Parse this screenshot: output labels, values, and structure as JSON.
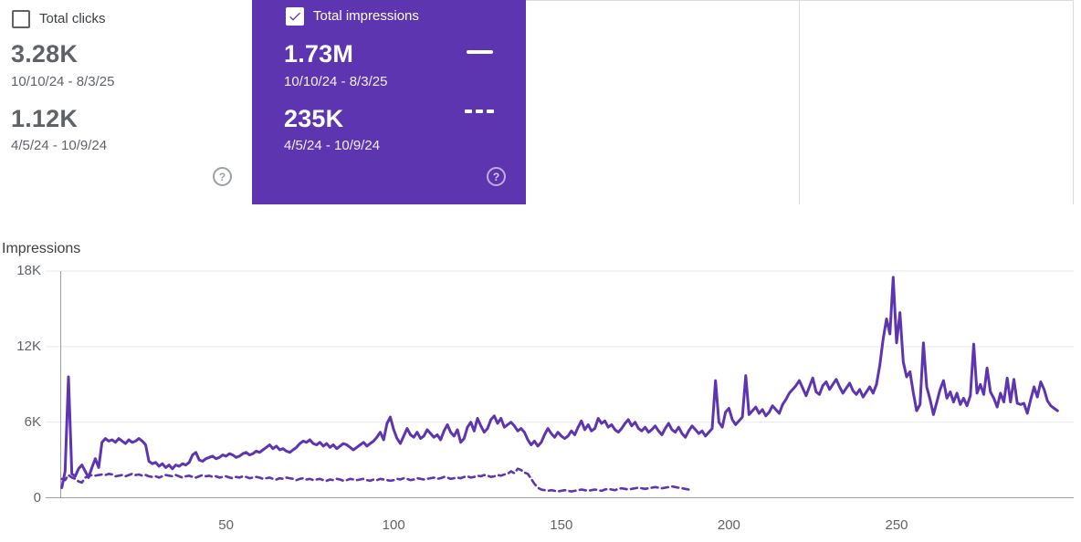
{
  "cards": {
    "clicks": {
      "label": "Total clicks",
      "checked": false,
      "current": {
        "value": "3.28K",
        "range": "10/10/24 - 8/3/25"
      },
      "previous": {
        "value": "1.12K",
        "range": "4/5/24 - 10/9/24"
      },
      "help_icon": "?"
    },
    "impressions": {
      "label": "Total impressions",
      "checked": true,
      "current": {
        "value": "1.73M",
        "range": "10/10/24 - 8/3/25"
      },
      "previous": {
        "value": "235K",
        "range": "4/5/24 - 10/9/24"
      },
      "help_icon": "?"
    }
  },
  "colors": {
    "accent": "#5e35b1",
    "line": "#5e35b1",
    "grid": "#e8eaed",
    "axis": "#9aa0a6",
    "tick_text": "#5f6368",
    "card_border": "#dadce0"
  },
  "chart_data": {
    "type": "line",
    "title": "Impressions",
    "ylabel": "Impressions",
    "xlabel": "",
    "ylim": [
      0,
      18000
    ],
    "grid": true,
    "legend_position": "in-card",
    "y_ticks": [
      {
        "value": 18000,
        "label": "18K"
      },
      {
        "value": 12000,
        "label": "12K"
      },
      {
        "value": 6000,
        "label": "6K"
      },
      {
        "value": 0,
        "label": "0"
      }
    ],
    "x_ticks": [
      {
        "value": 50,
        "label": "50"
      },
      {
        "value": 100,
        "label": "100"
      },
      {
        "value": 150,
        "label": "150"
      },
      {
        "value": 200,
        "label": "200"
      },
      {
        "value": 250,
        "label": "250"
      }
    ],
    "series": [
      {
        "name": "10/10/24 - 8/3/25",
        "style": "solid",
        "values": [
          800,
          2100,
          9600,
          1900,
          1700,
          2300,
          2600,
          2100,
          1600,
          2400,
          3100,
          2400,
          4400,
          4700,
          4500,
          4600,
          4400,
          4700,
          4500,
          4300,
          4600,
          4400,
          4500,
          4700,
          4500,
          4200,
          2900,
          2700,
          2800,
          2500,
          2700,
          2400,
          2600,
          2300,
          2600,
          2500,
          2700,
          2600,
          2800,
          3400,
          3600,
          3000,
          2900,
          3100,
          3200,
          3300,
          3100,
          3200,
          3400,
          3300,
          3500,
          3400,
          3200,
          3300,
          3500,
          3600,
          3400,
          3500,
          3700,
          3600,
          3800,
          4000,
          4200,
          3900,
          4100,
          3800,
          3900,
          3700,
          3600,
          3800,
          4000,
          4300,
          4500,
          4400,
          4600,
          4300,
          4200,
          4400,
          4100,
          4300,
          4000,
          4200,
          3900,
          4100,
          4300,
          4200,
          4000,
          3800,
          4000,
          4200,
          4400,
          4100,
          4300,
          4500,
          4800,
          5200,
          4600,
          5900,
          6400,
          5400,
          4700,
          4300,
          4900,
          5500,
          5000,
          4800,
          5200,
          4700,
          4900,
          5400,
          5100,
          4800,
          5000,
          4600,
          5300,
          5800,
          5200,
          4900,
          5400,
          4400,
          4700,
          5600,
          6000,
          5300,
          6300,
          5700,
          5200,
          5500,
          6200,
          6500,
          5900,
          6300,
          5600,
          5800,
          6000,
          5700,
          5300,
          5500,
          5200,
          4600,
          4200,
          4500,
          4100,
          4400,
          5000,
          5500,
          5100,
          4800,
          5200,
          4900,
          4700,
          4900,
          5300,
          5000,
          5600,
          6100,
          5400,
          5800,
          5300,
          5500,
          6300,
          5900,
          6100,
          5600,
          5800,
          5400,
          5200,
          5500,
          5900,
          6200,
          5700,
          6000,
          5500,
          5300,
          5600,
          5200,
          5400,
          5700,
          5300,
          5000,
          5500,
          5900,
          5400,
          5200,
          5600,
          5100,
          4800,
          5300,
          5700,
          5400,
          5100,
          5300,
          4900,
          5200,
          5500,
          9300,
          6000,
          5600,
          6800,
          7100,
          6200,
          5800,
          6100,
          6400,
          9700,
          6600,
          6900,
          7200,
          6700,
          7000,
          6500,
          6800,
          7300,
          7000,
          6700,
          7400,
          7800,
          8300,
          8600,
          8900,
          9300,
          8700,
          8100,
          8800,
          9500,
          8400,
          8200,
          8900,
          9200,
          8600,
          9000,
          9400,
          8800,
          8300,
          8700,
          9100,
          8500,
          8200,
          8600,
          8000,
          8400,
          8800,
          8300,
          9000,
          10500,
          12600,
          14200,
          13000,
          17500,
          12300,
          14700,
          10800,
          9600,
          10000,
          8300,
          6900,
          7400,
          12300,
          8800,
          7800,
          6600,
          7600,
          8600,
          9300,
          7900,
          8400,
          7600,
          8300,
          7400,
          7900,
          7300,
          8100,
          12200,
          8300,
          9000,
          8200,
          10300,
          8400,
          7900,
          7200,
          8300,
          7600,
          9500,
          7600,
          9400,
          7500,
          7400,
          7500,
          6700,
          7800,
          8800,
          8000,
          9200,
          8600,
          7700,
          7300,
          7100,
          6900
        ]
      },
      {
        "name": "4/5/24 - 10/9/24",
        "style": "dashed",
        "values": [
          1500,
          1400,
          1800,
          1600,
          1500,
          1300,
          1200,
          1600,
          1700,
          1800,
          1750,
          1800,
          1850,
          1800,
          1900,
          1850,
          1700,
          1750,
          1800,
          1700,
          1800,
          1900,
          1800,
          1850,
          1750,
          1800,
          1700,
          1650,
          1700,
          1600,
          1700,
          1800,
          1750,
          1700,
          1800,
          1700,
          1600,
          1700,
          1750,
          1650,
          1600,
          1700,
          1800,
          1700,
          1750,
          1650,
          1700,
          1600,
          1650,
          1700,
          1600,
          1550,
          1650,
          1600,
          1700,
          1650,
          1550,
          1600,
          1650,
          1600,
          1500,
          1550,
          1600,
          1500,
          1450,
          1550,
          1500,
          1600,
          1550,
          1500,
          1400,
          1500,
          1550,
          1450,
          1500,
          1400,
          1450,
          1500,
          1400,
          1350,
          1450,
          1400,
          1500,
          1450,
          1350,
          1400,
          1500,
          1450,
          1400,
          1450,
          1500,
          1400,
          1350,
          1450,
          1400,
          1500,
          1450,
          1400,
          1350,
          1400,
          1500,
          1450,
          1550,
          1500,
          1400,
          1450,
          1550,
          1500,
          1450,
          1500,
          1550,
          1600,
          1500,
          1550,
          1650,
          1600,
          1500,
          1550,
          1600,
          1550,
          1650,
          1700,
          1600,
          1650,
          1750,
          1700,
          1800,
          1750,
          1650,
          1700,
          1800,
          1750,
          1850,
          1900,
          2100,
          1950,
          2300,
          2200,
          2000,
          1900,
          1500,
          1100,
          800,
          650,
          600,
          550,
          600,
          550,
          500,
          550,
          600,
          550,
          500,
          550,
          600,
          650,
          600,
          550,
          600,
          650,
          600,
          550,
          650,
          700,
          650,
          600,
          700,
          750,
          700,
          650,
          700,
          750,
          800,
          750,
          700,
          750,
          800,
          850,
          800,
          750,
          800,
          850,
          900,
          850,
          800,
          750,
          700,
          650
        ]
      }
    ]
  }
}
